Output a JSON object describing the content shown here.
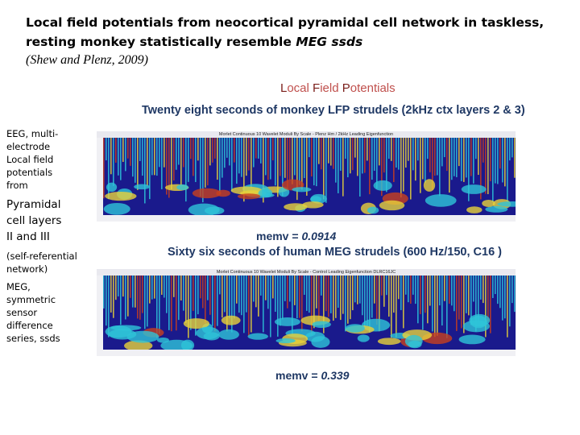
{
  "title": {
    "line1": "Local field potentials from neocortical pyramidal cell network in taskless,",
    "line2_plain": "resting monkey statistically resemble ",
    "line2_em": "MEG ssds",
    "citation": "(Shew and Plenz, 2009)"
  },
  "lfp_heading": {
    "L": "L",
    "ocal": "ocal ",
    "F": "F",
    "ield": "ield ",
    "P": "P",
    "otentials": "otentials"
  },
  "panel1": {
    "heading": "Twenty eight seconds of monkey LFP strudels (2kHz ctx layers 2 & 3)",
    "caption": "Morlet Continuous 10 Wavelet Moduli By Scale - Plenz Hm / 2kHz Leading Eigenfunction",
    "memv_label": "memv = ",
    "memv_value": "0.0914"
  },
  "panel2": {
    "heading": "Sixty six seconds of human MEG strudels (600 Hz/150, C16 )",
    "caption": "Morlet Continuous 10 Wavelet Moduli By Scale - Control Leading Eigenfunction DLRC16JC",
    "memv_label": "memv = ",
    "memv_value": "0.339"
  },
  "left": {
    "t1": "EEG, multi-",
    "t2": "electrode",
    "t3": "Local field",
    "t4": "potentials",
    "t5": "from",
    "t6": "Pyramidal",
    "t7": "cell layers",
    "t8": "II and III",
    "t9": "(self-referential",
    "t10": "network)",
    "t11": "MEG,",
    "t12": "symmetric",
    "t13": "sensor",
    "t14": "difference",
    "t15": "series, ssds"
  },
  "colors": {
    "heading_blue": "#1f3864",
    "lfp_red": "#c0504d",
    "lfp_dark": "#7a1e1a",
    "wavelet_low": "#1a1a8c",
    "wavelet_mid": "#2ec4d8",
    "wavelet_hi": "#e8d23a",
    "wavelet_peak": "#c8401e"
  }
}
